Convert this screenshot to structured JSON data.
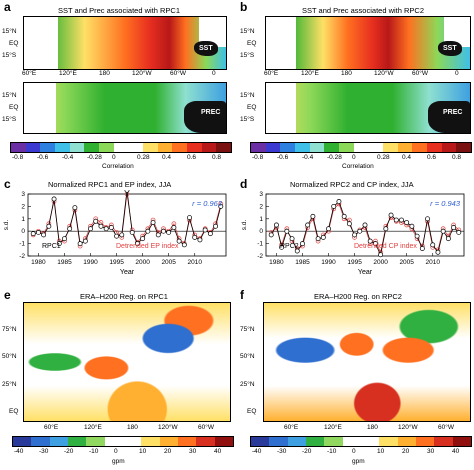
{
  "panels": {
    "a": {
      "label": "a",
      "title": "SST and Prec associated with RPC1",
      "sst_tag": "SST",
      "prec_tag": "PREC"
    },
    "b": {
      "label": "b",
      "title": "SST and Prec associated with RPC2",
      "sst_tag": "SST",
      "prec_tag": "PREC"
    },
    "c": {
      "label": "c",
      "title": "Normalized RPC1 and EP index, JJA",
      "r": "r = 0.963",
      "ylabel": "s.d.",
      "xlabel": "Year",
      "series1": "RPC1",
      "series2": "Detrended EP index"
    },
    "d": {
      "label": "d",
      "title": "Normalized RPC2 and CP index, JJA",
      "r": "r = 0.943",
      "ylabel": "s.d.",
      "xlabel": "Year",
      "series1": "RPC2",
      "series2": "Detrended CP index"
    },
    "e": {
      "label": "e",
      "title": "ERA–H200 Reg. on RPC1"
    },
    "f": {
      "label": "f",
      "title": "ERA–H200 Reg. on RPC2"
    }
  },
  "map_ticks": {
    "lat_top": [
      "15°N",
      "EQ",
      "15°S"
    ],
    "lon_top": [
      "60°E",
      "120°E",
      "180",
      "120°W",
      "60°W",
      "0"
    ],
    "lat_bottom": [
      "75°N",
      "50°N",
      "25°N",
      "EQ"
    ],
    "lon_bottom": [
      "60°E",
      "120°E",
      "180",
      "120°W",
      "60°W"
    ]
  },
  "colorbar_top": {
    "ticks": [
      "-0.8",
      "-0.6",
      "-0.4",
      "-0.28",
      "0",
      "0.28",
      "0.4",
      "0.6",
      "0.8"
    ],
    "label": "Correlation",
    "colors": [
      "#6a2fa5",
      "#3a3ad0",
      "#2f7fe0",
      "#3ec0e8",
      "#8fe0d0",
      "#30b030",
      "#8cd858",
      "#ffffff",
      "#ffffff",
      "#ffe066",
      "#ffb030",
      "#ff7020",
      "#e83020",
      "#b81818",
      "#7a1010"
    ]
  },
  "colorbar_bottom": {
    "ticks": [
      "-40",
      "-30",
      "-20",
      "-10",
      "0",
      "10",
      "20",
      "30",
      "40"
    ],
    "label": "gpm",
    "colors": [
      "#2a3a9a",
      "#2f6fd0",
      "#3ea0e0",
      "#30b040",
      "#90d860",
      "#ffffff",
      "#ffffff",
      "#ffe066",
      "#ffb030",
      "#ff7020",
      "#d83020",
      "#901010"
    ]
  },
  "chart_data": [
    {
      "type": "line",
      "panel": "c",
      "x": [
        1979,
        1980,
        1981,
        1982,
        1983,
        1984,
        1985,
        1986,
        1987,
        1988,
        1989,
        1990,
        1991,
        1992,
        1993,
        1994,
        1995,
        1996,
        1997,
        1998,
        1999,
        2000,
        2001,
        2002,
        2003,
        2004,
        2005,
        2006,
        2007,
        2008,
        2009,
        2010,
        2011,
        2012,
        2013,
        2014,
        2015
      ],
      "series": [
        {
          "name": "RPC1",
          "values": [
            -0.2,
            -0.1,
            -0.3,
            0.4,
            2.6,
            -1.0,
            -0.6,
            0.2,
            1.9,
            -1.0,
            -0.8,
            0.2,
            0.8,
            0.4,
            0.2,
            0.3,
            -0.4,
            -0.3,
            3.3,
            -0.1,
            -1.0,
            -0.6,
            0.0,
            0.7,
            -0.3,
            0.0,
            -0.1,
            0.3,
            -0.8,
            -1.1,
            1.1,
            -0.5,
            -0.7,
            0.1,
            -0.2,
            0.4,
            2.0
          ]
        },
        {
          "name": "Detrended EP index",
          "values": [
            -0.3,
            0.0,
            -0.2,
            0.6,
            2.4,
            -0.8,
            -0.8,
            0.4,
            1.7,
            -1.2,
            -0.6,
            0.4,
            1.0,
            0.7,
            0.3,
            0.5,
            -0.1,
            -0.5,
            3.0,
            0.1,
            -0.9,
            -0.4,
            0.2,
            0.9,
            -0.1,
            0.2,
            0.0,
            0.6,
            -0.6,
            -1.0,
            0.9,
            -0.3,
            -0.6,
            0.2,
            -0.1,
            0.6,
            2.2
          ]
        }
      ],
      "xlim": [
        1978,
        2016
      ],
      "ylim": [
        -2,
        3
      ],
      "yticks": [
        -2,
        -1,
        0,
        1,
        2,
        3
      ],
      "xticks": [
        1980,
        1985,
        1990,
        1995,
        2000,
        2005,
        2010
      ]
    },
    {
      "type": "line",
      "panel": "d",
      "x": [
        1979,
        1980,
        1981,
        1982,
        1983,
        1984,
        1985,
        1986,
        1987,
        1988,
        1989,
        1990,
        1991,
        1992,
        1993,
        1994,
        1995,
        1996,
        1997,
        1998,
        1999,
        2000,
        2001,
        2002,
        2003,
        2004,
        2005,
        2006,
        2007,
        2008,
        2009,
        2010,
        2011,
        2012,
        2013,
        2014,
        2015
      ],
      "series": [
        {
          "name": "RPC2",
          "values": [
            -0.3,
            0.5,
            -1.3,
            0.0,
            -0.6,
            -1.6,
            -1.0,
            0.5,
            1.2,
            -0.6,
            -0.5,
            0.2,
            2.0,
            2.4,
            1.2,
            0.6,
            -0.3,
            0.0,
            0.5,
            -0.8,
            -1.0,
            -1.9,
            0.2,
            1.3,
            0.9,
            0.9,
            0.7,
            0.4,
            -0.4,
            -1.4,
            1.0,
            -1.1,
            -1.7,
            0.0,
            -0.6,
            0.3,
            -0.1
          ]
        },
        {
          "name": "Detrended CP index",
          "values": [
            -0.1,
            0.3,
            -1.1,
            0.2,
            -0.8,
            -1.4,
            -1.2,
            0.3,
            1.0,
            -0.8,
            -0.3,
            0.0,
            1.8,
            2.2,
            1.0,
            0.9,
            -0.5,
            0.1,
            0.3,
            -1.0,
            -0.8,
            -1.7,
            0.4,
            1.1,
            0.8,
            0.7,
            0.5,
            0.2,
            -0.6,
            -1.2,
            0.8,
            -1.3,
            -1.5,
            0.2,
            -0.4,
            0.5,
            0.1
          ]
        }
      ],
      "xlim": [
        1978,
        2016
      ],
      "ylim": [
        -2,
        3
      ],
      "yticks": [
        -2,
        -1,
        0,
        1,
        2,
        3
      ],
      "xticks": [
        1980,
        1985,
        1990,
        1995,
        2000,
        2005,
        2010
      ]
    }
  ]
}
